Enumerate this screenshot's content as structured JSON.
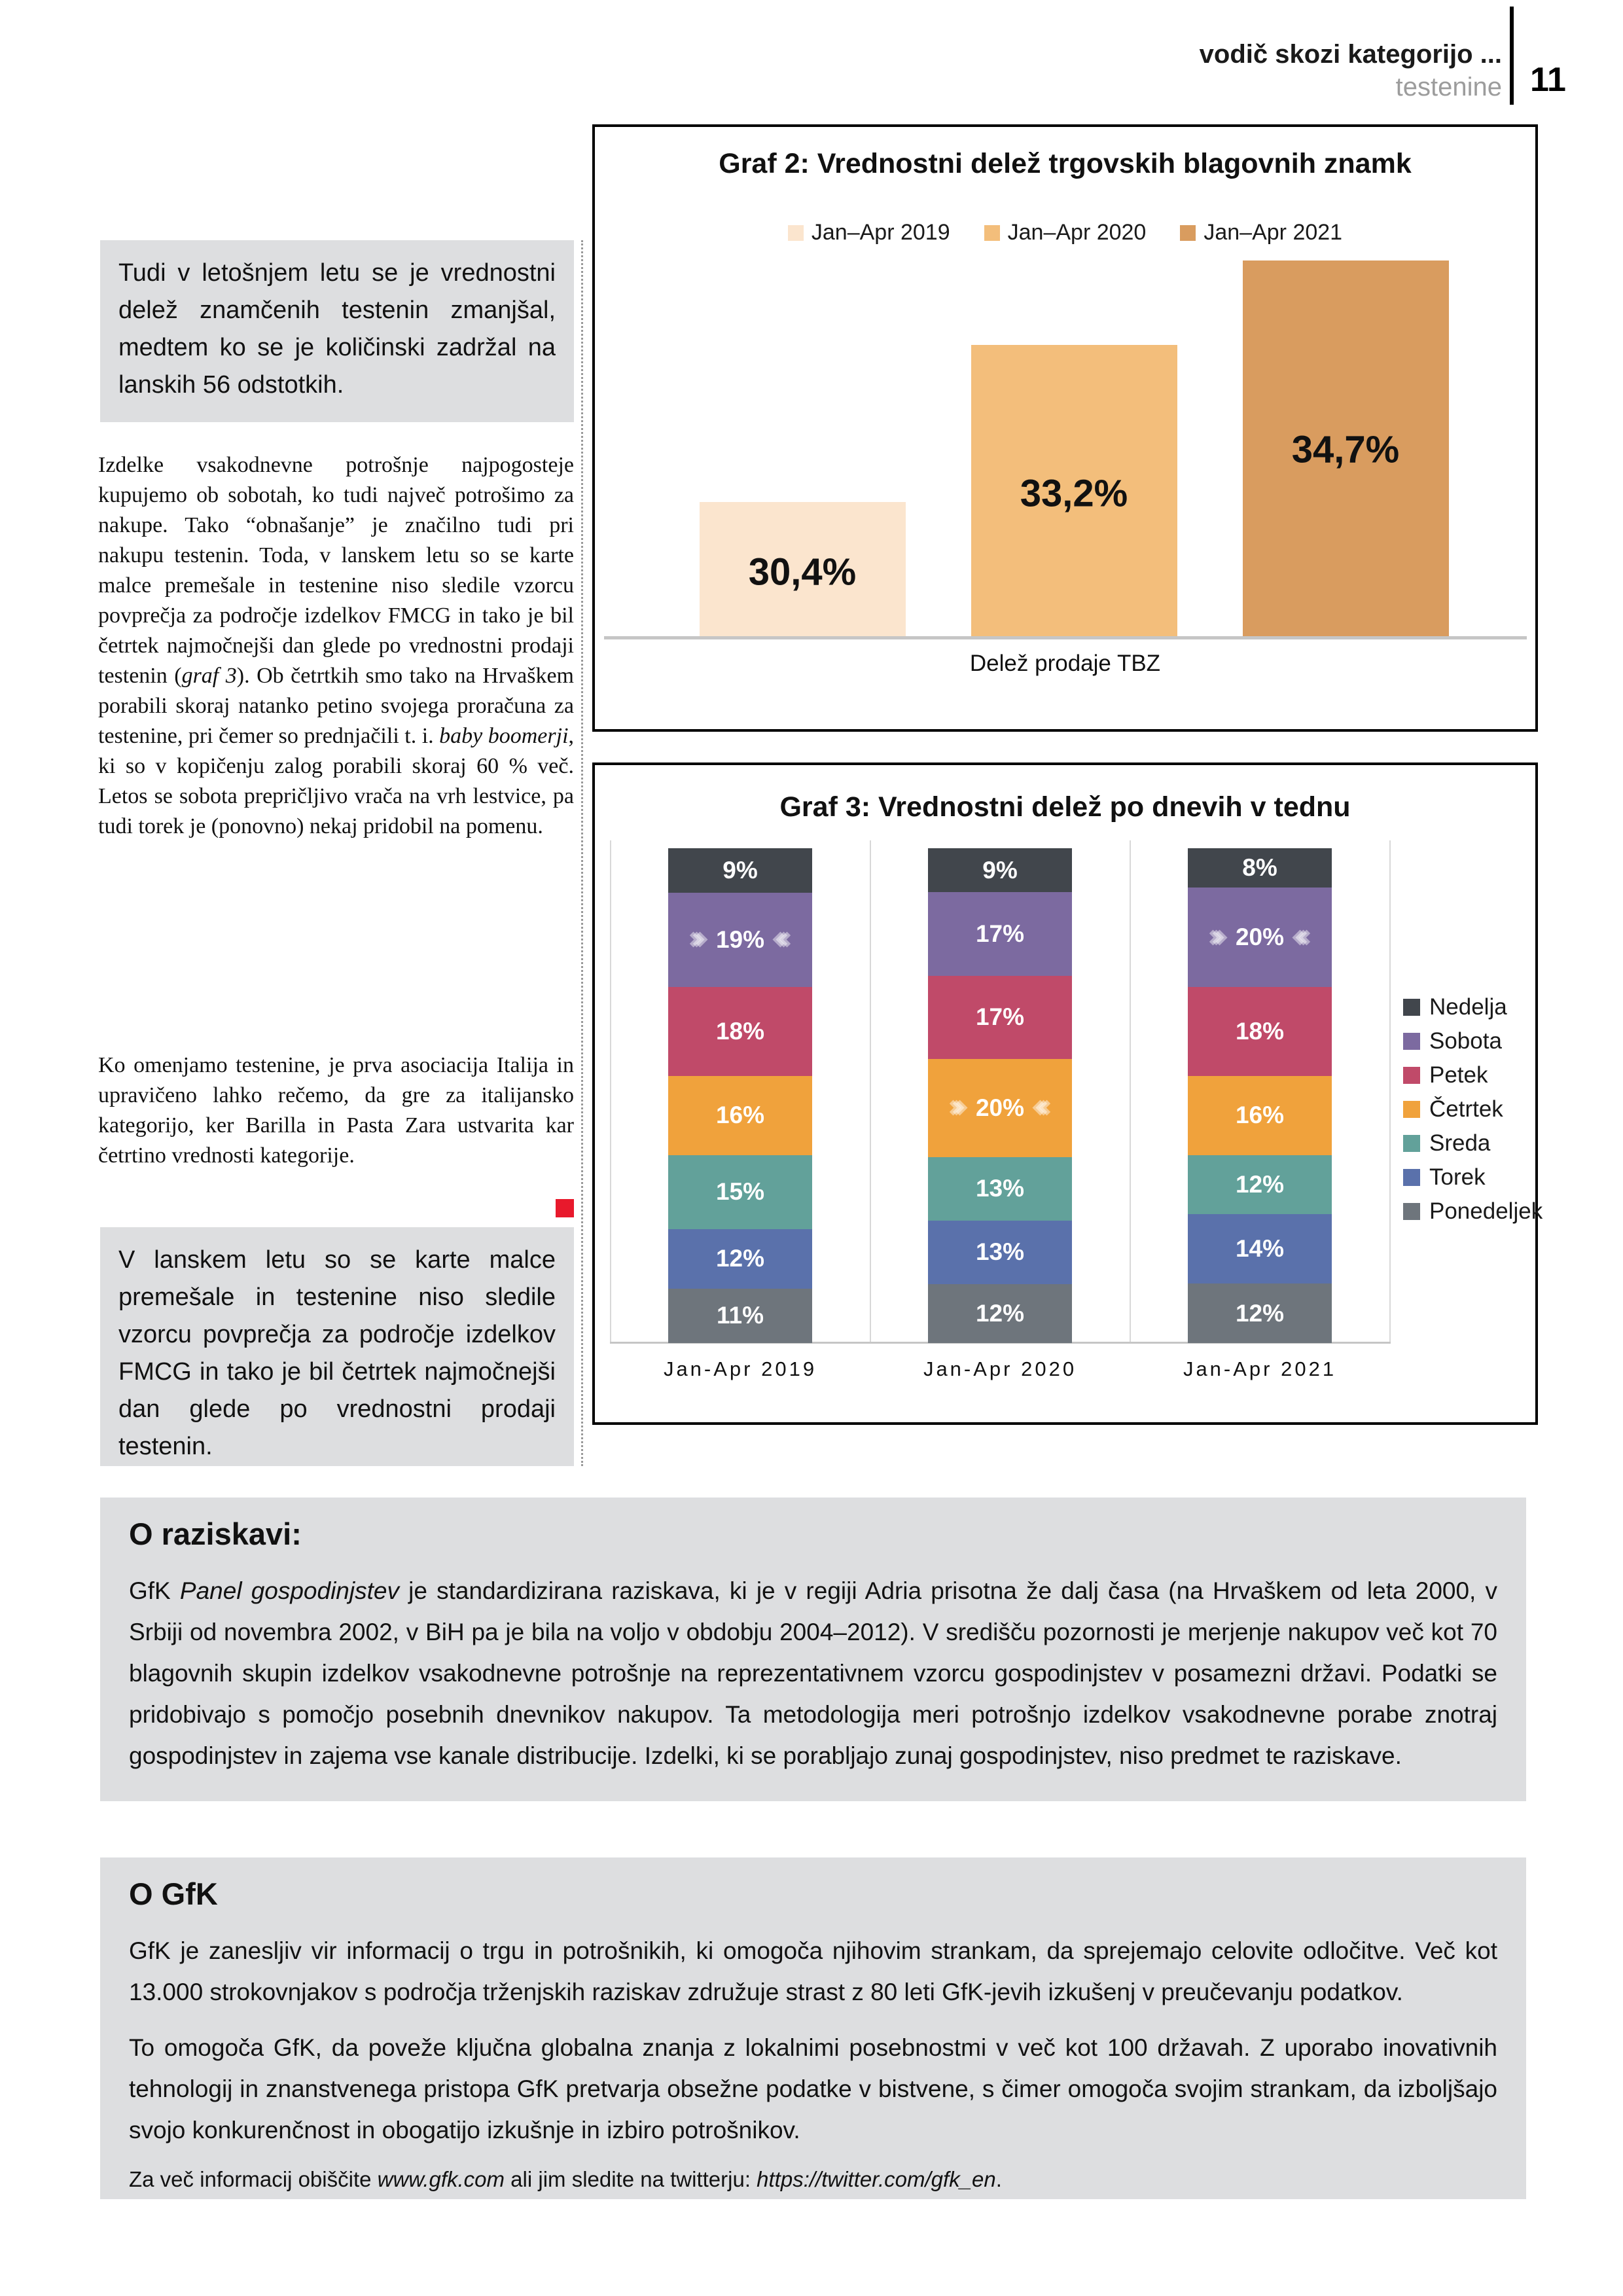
{
  "page": {
    "number": "11"
  },
  "header": {
    "title": "vodič skozi kategorijo ...",
    "subtitle": "testenine"
  },
  "colors": {
    "accent_red": "#e8192c",
    "highlight_gray": "#dddee0",
    "header_subtitle_gray": "#9c9c9c",
    "chart_border": "#000000"
  },
  "intro_box": {
    "text": "Tudi v letošnjem letu se je vrednostni delež znamčenih testenin zmanjšal, medtem ko se je količinski zadržal na lanskih 56 odstotkih."
  },
  "article": {
    "p1a": "Izdelke vsakodnevne potrošnje najpogosteje kupujemo ob sobotah, ko tudi največ potrošimo za nakupe. Tako “obnašanje” je značilno tudi pri nakupu testenin. Toda, v lanskem letu so se karte malce premešale in testenine niso sledile vzorcu povprečja za področje izdelkov FMCG in tako je bil četrtek najmočnejši dan glede po vrednostni prodaji testenin (",
    "p1i1": "graf 3",
    "p1b": "). Ob četrtkih smo tako na Hrvaškem porabili skoraj natanko petino svojega proračuna za testenine, pri čemer so prednjačili t. i. ",
    "p1i2": "baby boomerji",
    "p1c": ", ki so v kopičenju zalog porabili skoraj 60 % več. Letos se sobota prepričljivo vrača na vrh lestvice, pa tudi torek je (ponovno) nekaj pridobil na pomenu.",
    "p2": "Ko omenjamo testenine, je prva asociacija Italija in upravičeno lahko rečemo, da gre za italijansko kategorijo, ker Barilla in Pasta Zara ustvarita kar četrtino vrednosti kategorije."
  },
  "quote_box": {
    "text": "V lanskem letu so se karte malce premešale in testenine niso sledile vzorcu povprečja za področje izdelkov FMCG in tako je bil četrtek najmočnejši dan glede po vrednostni prodaji testenin."
  },
  "chart_data": [
    {
      "id": "graf2",
      "type": "bar",
      "title": "Graf 2: Vrednostni delež trgovskih blagovnih znamk",
      "categories": [
        "Jan–Apr 2019",
        "Jan–Apr 2020",
        "Jan–Apr 2021"
      ],
      "values": [
        30.4,
        33.2,
        34.7
      ],
      "labels": [
        "30,4%",
        "33,2%",
        "34,7%"
      ],
      "colors": [
        "#fbe5ce",
        "#f3be7b",
        "#d99c5f"
      ],
      "xlabel": "Delež prodaje TBZ",
      "ylabel": "",
      "ylim": [
        28,
        35.2
      ],
      "grid": false,
      "legend_position": "top"
    },
    {
      "id": "graf3",
      "type": "bar",
      "stacked": true,
      "title": "Graf 3: Vrednostni delež po dnevih v tednu",
      "categories": [
        "Jan-Apr 2019",
        "Jan-Apr 2020",
        "Jan-Apr 2021"
      ],
      "series": [
        {
          "name": "Nedelja",
          "color": "#41464c",
          "values": [
            9,
            9,
            8
          ],
          "highlight": [
            false,
            false,
            false
          ]
        },
        {
          "name": "Sobota",
          "color": "#7c6aa0",
          "values": [
            19,
            17,
            20
          ],
          "highlight": [
            true,
            false,
            true
          ]
        },
        {
          "name": "Petek",
          "color": "#c04a69",
          "values": [
            18,
            17,
            18
          ],
          "highlight": [
            false,
            false,
            false
          ]
        },
        {
          "name": "Četrtek",
          "color": "#f0a23c",
          "values": [
            16,
            20,
            16
          ],
          "highlight": [
            false,
            true,
            false
          ]
        },
        {
          "name": "Sreda",
          "color": "#62a19a",
          "values": [
            15,
            13,
            12
          ],
          "highlight": [
            false,
            false,
            false
          ]
        },
        {
          "name": "Torek",
          "color": "#5a71ab",
          "values": [
            12,
            13,
            14
          ],
          "highlight": [
            false,
            false,
            false
          ]
        },
        {
          "name": "Ponedeljek",
          "color": "#6e757c",
          "values": [
            11,
            12,
            12
          ],
          "highlight": [
            false,
            false,
            false
          ]
        }
      ],
      "value_suffix": "%",
      "ylim": [
        0,
        100
      ],
      "grid": true,
      "legend_position": "right"
    }
  ],
  "about_research": {
    "heading": "O raziskavi:",
    "body_a": "GfK ",
    "body_i": "Panel gospodinjstev",
    "body_b": " je standardizirana raziskava, ki je v regiji Adria prisotna že dalj časa (na Hrvaškem od leta 2000, v Srbiji od novembra 2002, v BiH pa je bila na voljo v obdobju 2004–2012). V središču pozornosti je merjenje nakupov več kot 70 blagovnih skupin izdelkov vsakodnevne potrošnje na reprezentativnem vzorcu gospodinjstev v posamezni državi. Podatki se pridobivajo s pomočjo posebnih dnevnikov nakupov. Ta metodologija meri potrošnjo izdelkov vsakodnevne porabe znotraj gospodinjstev in zajema vse kanale distribucije. Izdelki, ki se porabljajo zunaj gospodinjstev, niso predmet te raziskave."
  },
  "about_gfk": {
    "heading": "O GfK",
    "p1": "GfK je zanesljiv vir informacij o trgu in potrošnikih, ki omogoča njihovim strankam, da sprejemajo celovite odločitve. Več kot 13.000 strokovnjakov s področja trženjskih raziskav združuje strast z 80 leti GfK-jevih izkušenj v preučevanju podatkov.",
    "p2": "To omogoča GfK, da poveže ključna globalna znanja z lokalnimi posebnostmi v več kot 100 državah. Z uporabo inovativnih tehnologij in znanstvenega pristopa GfK pretvarja obsežne podatke v bistvene, s čimer omogoča svojim strankam, da izboljšajo svojo konkurenčnost in obogatijo izkušnje in izbiro potrošnikov.",
    "footer_pre": "Za več informacij obiščite ",
    "footer_link1": "www.gfk.com",
    "footer_mid": " ali jim sledite na twitterju: ",
    "footer_link2": "https://twitter.com/gfk_en",
    "footer_end": "."
  }
}
